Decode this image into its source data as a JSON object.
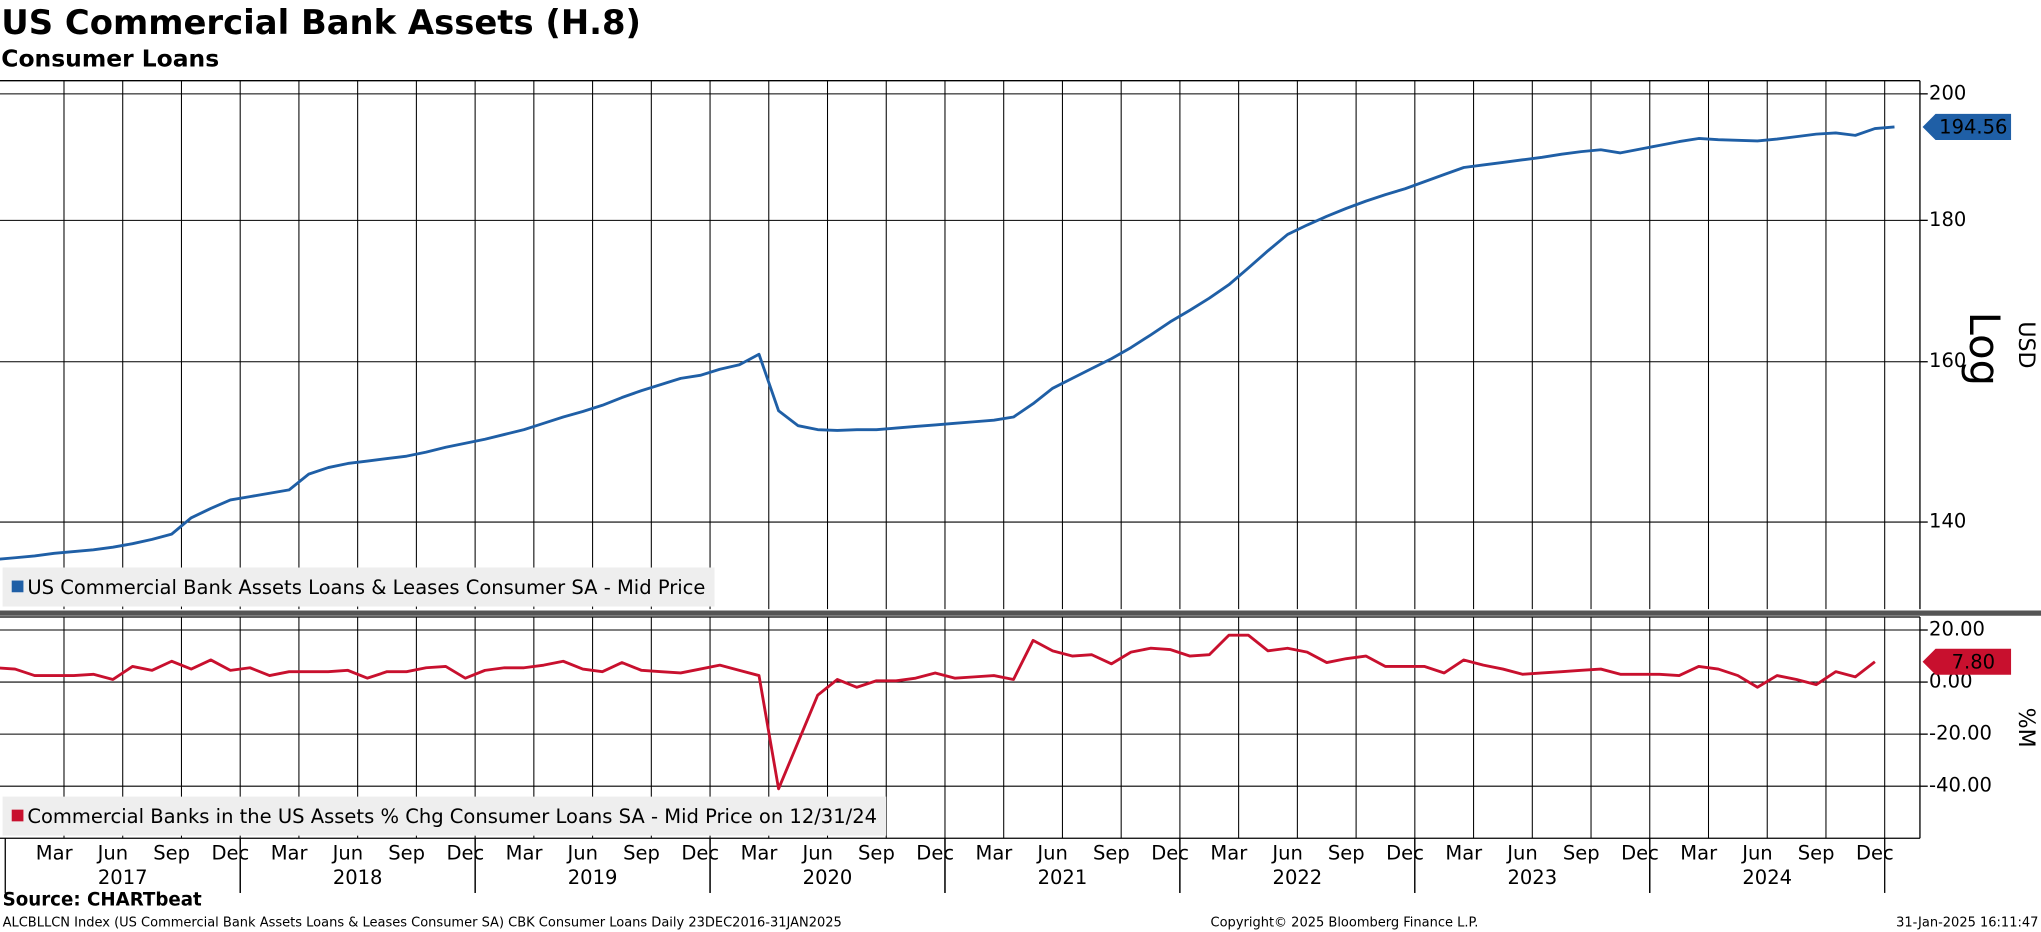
{
  "header": {
    "title": "US Commercial Bank Assets (H.8)",
    "subtitle": "Consumer Loans"
  },
  "chart_data": [
    {
      "type": "line",
      "log_scale": true,
      "grid": true,
      "legend": "lower left",
      "ylabel": "USD",
      "scale_label": "Log",
      "xlim": [
        "2016-12",
        "2025-03"
      ],
      "ylim": [
        130.2,
        202.2
      ],
      "yticks": [
        140,
        160,
        180,
        200
      ],
      "x": [
        "2016-12",
        "2017-01",
        "2017-02",
        "2017-03",
        "2017-04",
        "2017-05",
        "2017-06",
        "2017-07",
        "2017-08",
        "2017-09",
        "2017-10",
        "2017-11",
        "2017-12",
        "2018-01",
        "2018-02",
        "2018-03",
        "2018-04",
        "2018-05",
        "2018-06",
        "2018-07",
        "2018-08",
        "2018-09",
        "2018-10",
        "2018-11",
        "2018-12",
        "2019-01",
        "2019-02",
        "2019-03",
        "2019-04",
        "2019-05",
        "2019-06",
        "2019-07",
        "2019-08",
        "2019-09",
        "2019-10",
        "2019-11",
        "2019-12",
        "2020-01",
        "2020-02",
        "2020-03",
        "2020-04",
        "2020-05",
        "2020-06",
        "2020-07",
        "2020-08",
        "2020-09",
        "2020-10",
        "2020-11",
        "2020-12",
        "2021-01",
        "2021-02",
        "2021-03",
        "2021-04",
        "2021-05",
        "2021-06",
        "2021-07",
        "2021-08",
        "2021-09",
        "2021-10",
        "2021-11",
        "2021-12",
        "2022-01",
        "2022-02",
        "2022-03",
        "2022-04",
        "2022-05",
        "2022-06",
        "2022-07",
        "2022-08",
        "2022-09",
        "2022-10",
        "2022-11",
        "2022-12",
        "2023-01",
        "2023-02",
        "2023-03",
        "2023-04",
        "2023-05",
        "2023-06",
        "2023-07",
        "2023-08",
        "2023-09",
        "2023-10",
        "2023-11",
        "2023-12",
        "2024-01",
        "2024-02",
        "2024-03",
        "2024-04",
        "2024-05",
        "2024-06",
        "2024-07",
        "2024-08",
        "2024-09",
        "2024-10",
        "2024-11",
        "2024-12",
        "2025-01"
      ],
      "series": [
        {
          "name": "US Commercial Bank Assets Loans & Leases Consumer SA - Mid Price",
          "color": "#1f5fa6",
          "last_value": 194.56,
          "values": [
            135.7,
            135.9,
            136.1,
            136.4,
            136.6,
            136.8,
            137.1,
            137.5,
            138.0,
            138.6,
            140.5,
            141.6,
            142.6,
            143.0,
            143.4,
            143.8,
            145.7,
            146.5,
            147.0,
            147.3,
            147.6,
            147.9,
            148.4,
            149.0,
            149.5,
            150.0,
            150.6,
            151.2,
            152.0,
            152.8,
            153.5,
            154.3,
            155.3,
            156.2,
            157.0,
            157.8,
            158.2,
            159.0,
            159.6,
            161.0,
            153.6,
            151.7,
            151.2,
            151.1,
            151.2,
            151.2,
            151.4,
            151.6,
            151.8,
            152.0,
            152.2,
            152.4,
            152.8,
            154.5,
            156.5,
            157.8,
            159.1,
            160.4,
            161.9,
            163.6,
            165.4,
            167.0,
            168.7,
            170.6,
            173.0,
            175.5,
            177.9,
            179.3,
            180.6,
            181.8,
            182.9,
            183.9,
            184.8,
            185.9,
            187.0,
            188.1,
            188.5,
            188.9,
            189.3,
            189.7,
            190.2,
            190.6,
            190.9,
            190.4,
            191.0,
            191.6,
            192.2,
            192.7,
            192.5,
            192.4,
            192.3,
            192.6,
            193.0,
            193.4,
            193.6,
            193.2,
            194.3,
            194.56
          ]
        }
      ]
    },
    {
      "type": "line",
      "log_scale": false,
      "grid": true,
      "legend": "lower left",
      "ylabel": "%M",
      "xlim": [
        "2016-12",
        "2025-03"
      ],
      "ylim": [
        -60,
        25
      ],
      "yticks": [
        {
          "value": -40,
          "label": "-40.00"
        },
        {
          "value": -20,
          "label": "-20.00"
        },
        {
          "value": 0,
          "label": "0.00"
        },
        {
          "value": 20,
          "label": "20.00"
        }
      ],
      "xticks": [
        {
          "value": "2017-03",
          "label": "Mar"
        },
        {
          "value": "2017-06",
          "label": "Jun"
        },
        {
          "value": "2017-09",
          "label": "Sep"
        },
        {
          "value": "2017-12",
          "label": "Dec"
        },
        {
          "value": "2018-03",
          "label": "Mar"
        },
        {
          "value": "2018-06",
          "label": "Jun"
        },
        {
          "value": "2018-09",
          "label": "Sep"
        },
        {
          "value": "2018-12",
          "label": "Dec"
        },
        {
          "value": "2019-03",
          "label": "Mar"
        },
        {
          "value": "2019-06",
          "label": "Jun"
        },
        {
          "value": "2019-09",
          "label": "Sep"
        },
        {
          "value": "2019-12",
          "label": "Dec"
        },
        {
          "value": "2020-03",
          "label": "Mar"
        },
        {
          "value": "2020-06",
          "label": "Jun"
        },
        {
          "value": "2020-09",
          "label": "Sep"
        },
        {
          "value": "2020-12",
          "label": "Dec"
        },
        {
          "value": "2021-03",
          "label": "Mar"
        },
        {
          "value": "2021-06",
          "label": "Jun"
        },
        {
          "value": "2021-09",
          "label": "Sep"
        },
        {
          "value": "2021-12",
          "label": "Dec"
        },
        {
          "value": "2022-03",
          "label": "Mar"
        },
        {
          "value": "2022-06",
          "label": "Jun"
        },
        {
          "value": "2022-09",
          "label": "Sep"
        },
        {
          "value": "2022-12",
          "label": "Dec"
        },
        {
          "value": "2023-03",
          "label": "Mar"
        },
        {
          "value": "2023-06",
          "label": "Jun"
        },
        {
          "value": "2023-09",
          "label": "Sep"
        },
        {
          "value": "2023-12",
          "label": "Dec"
        },
        {
          "value": "2024-03",
          "label": "Mar"
        },
        {
          "value": "2024-06",
          "label": "Jun"
        },
        {
          "value": "2024-09",
          "label": "Sep"
        },
        {
          "value": "2024-12",
          "label": "Dec"
        }
      ],
      "year_labels": [
        "2017",
        "2018",
        "2019",
        "2020",
        "2021",
        "2022",
        "2023",
        "2024"
      ],
      "x": [
        "2016-12",
        "2017-01",
        "2017-02",
        "2017-03",
        "2017-04",
        "2017-05",
        "2017-06",
        "2017-07",
        "2017-08",
        "2017-09",
        "2017-10",
        "2017-11",
        "2017-12",
        "2018-01",
        "2018-02",
        "2018-03",
        "2018-04",
        "2018-05",
        "2018-06",
        "2018-07",
        "2018-08",
        "2018-09",
        "2018-10",
        "2018-11",
        "2018-12",
        "2019-01",
        "2019-02",
        "2019-03",
        "2019-04",
        "2019-05",
        "2019-06",
        "2019-07",
        "2019-08",
        "2019-09",
        "2019-10",
        "2019-11",
        "2019-12",
        "2020-01",
        "2020-02",
        "2020-03",
        "2020-04",
        "2020-05",
        "2020-06",
        "2020-07",
        "2020-08",
        "2020-09",
        "2020-10",
        "2020-11",
        "2020-12",
        "2021-01",
        "2021-02",
        "2021-03",
        "2021-04",
        "2021-05",
        "2021-06",
        "2021-07",
        "2021-08",
        "2021-09",
        "2021-10",
        "2021-11",
        "2021-12",
        "2022-01",
        "2022-02",
        "2022-03",
        "2022-04",
        "2022-05",
        "2022-06",
        "2022-07",
        "2022-08",
        "2022-09",
        "2022-10",
        "2022-11",
        "2022-12",
        "2023-01",
        "2023-02",
        "2023-03",
        "2023-04",
        "2023-05",
        "2023-06",
        "2023-07",
        "2023-08",
        "2023-09",
        "2023-10",
        "2023-11",
        "2023-12",
        "2024-01",
        "2024-02",
        "2024-03",
        "2024-04",
        "2024-05",
        "2024-06",
        "2024-07",
        "2024-08",
        "2024-09",
        "2024-10",
        "2024-11",
        "2024-12"
      ],
      "series": [
        {
          "name": "Commercial Banks in the US Assets % Chg Consumer Loans SA - Mid Price on 12/31/24",
          "color": "#c8102e",
          "last_value": {
            "value": 7.8,
            "label": "7.80"
          },
          "values": [
            5.5,
            5.0,
            2.5,
            2.5,
            2.5,
            3.0,
            1.0,
            6.0,
            4.5,
            8.0,
            5.0,
            8.5,
            4.5,
            5.5,
            2.5,
            4.0,
            4.0,
            4.0,
            4.5,
            1.5,
            4.0,
            4.0,
            5.5,
            6.0,
            1.5,
            4.5,
            5.5,
            5.5,
            6.5,
            8.0,
            5.0,
            4.0,
            7.5,
            4.5,
            4.0,
            3.5,
            5.0,
            6.5,
            4.5,
            2.5,
            -41.0,
            -23.0,
            -5.0,
            1.0,
            -2.0,
            0.5,
            0.5,
            1.5,
            3.5,
            1.5,
            2.0,
            2.5,
            1.0,
            16.0,
            12.0,
            10.0,
            10.5,
            7.0,
            11.5,
            13.0,
            12.5,
            10.0,
            10.5,
            18.0,
            18.0,
            12.0,
            13.0,
            11.5,
            7.5,
            9.0,
            10.0,
            6.0,
            6.0,
            6.0,
            3.5,
            8.5,
            6.5,
            5.0,
            3.0,
            3.5,
            4.0,
            4.5,
            5.0,
            3.0,
            3.0,
            3.0,
            2.5,
            6.0,
            5.0,
            2.5,
            -2.0,
            2.5,
            1.0,
            -1.0,
            4.0,
            2.0,
            7.8
          ]
        }
      ]
    }
  ],
  "footer": {
    "source": "Source: CHARTbeat",
    "description": "ALCBLLCN Index (US Commercial Bank Assets Loans & Leases Consumer SA) CBK Consumer Loans  Daily 23DEC2016-31JAN2025",
    "copyright": "Copyright© 2025 Bloomberg Finance L.P.",
    "timestamp": "31-Jan-2025 16:11:47"
  }
}
